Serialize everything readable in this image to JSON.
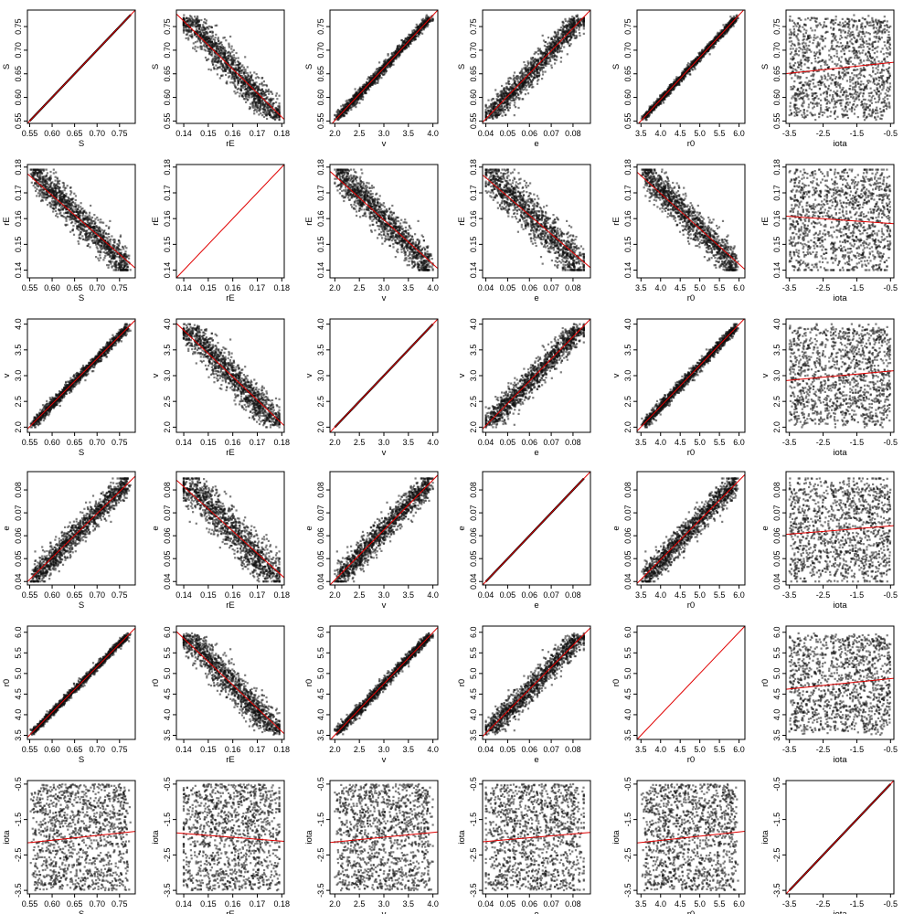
{
  "chart_data": {
    "type": "scatter-matrix",
    "variables": [
      {
        "name": "S",
        "range": [
          0.545,
          0.785
        ],
        "ticks": [
          0.55,
          0.6,
          0.65,
          0.7,
          0.75
        ],
        "decimals": 2,
        "data_range": [
          0.55,
          0.775
        ]
      },
      {
        "name": "rE",
        "range": [
          0.137,
          0.181
        ],
        "ticks": [
          0.14,
          0.15,
          0.16,
          0.17,
          0.18
        ],
        "decimals": 2,
        "data_range": [
          0.14,
          0.179
        ]
      },
      {
        "name": "v",
        "range": [
          1.9,
          4.1
        ],
        "ticks": [
          2.0,
          2.5,
          3.0,
          3.5,
          4.0
        ],
        "decimals": 1,
        "data_range": [
          2.0,
          4.0
        ]
      },
      {
        "name": "e",
        "range": [
          0.0385,
          0.088
        ],
        "ticks": [
          0.04,
          0.05,
          0.06,
          0.07,
          0.08
        ],
        "decimals": 2,
        "data_range": [
          0.04,
          0.085
        ]
      },
      {
        "name": "r0",
        "range": [
          3.4,
          6.15
        ],
        "ticks": [
          3.5,
          4.0,
          4.5,
          5.0,
          5.5,
          6.0
        ],
        "decimals": 1,
        "data_range": [
          3.5,
          6.0
        ]
      },
      {
        "name": "iota",
        "range": [
          -3.6,
          -0.4
        ],
        "ticks": [
          -3.5,
          -2.5,
          -1.5,
          -0.5
        ],
        "decimals": 1,
        "data_range": [
          -3.5,
          -0.5
        ]
      }
    ],
    "correlations": [
      [
        1.0,
        -0.88,
        0.99,
        0.96,
        0.995,
        0.1
      ],
      [
        -0.88,
        1.0,
        -0.88,
        -0.84,
        -0.88,
        -0.07
      ],
      [
        0.99,
        -0.88,
        1.0,
        0.97,
        0.995,
        0.09
      ],
      [
        0.96,
        -0.84,
        0.97,
        1.0,
        0.96,
        0.08
      ],
      [
        0.995,
        -0.88,
        0.995,
        0.96,
        1.0,
        0.1
      ],
      [
        0.1,
        -0.07,
        0.09,
        0.08,
        0.1,
        1.0
      ]
    ],
    "fit_line_color": "#e00000",
    "point_color": "#111111",
    "grid": false
  }
}
